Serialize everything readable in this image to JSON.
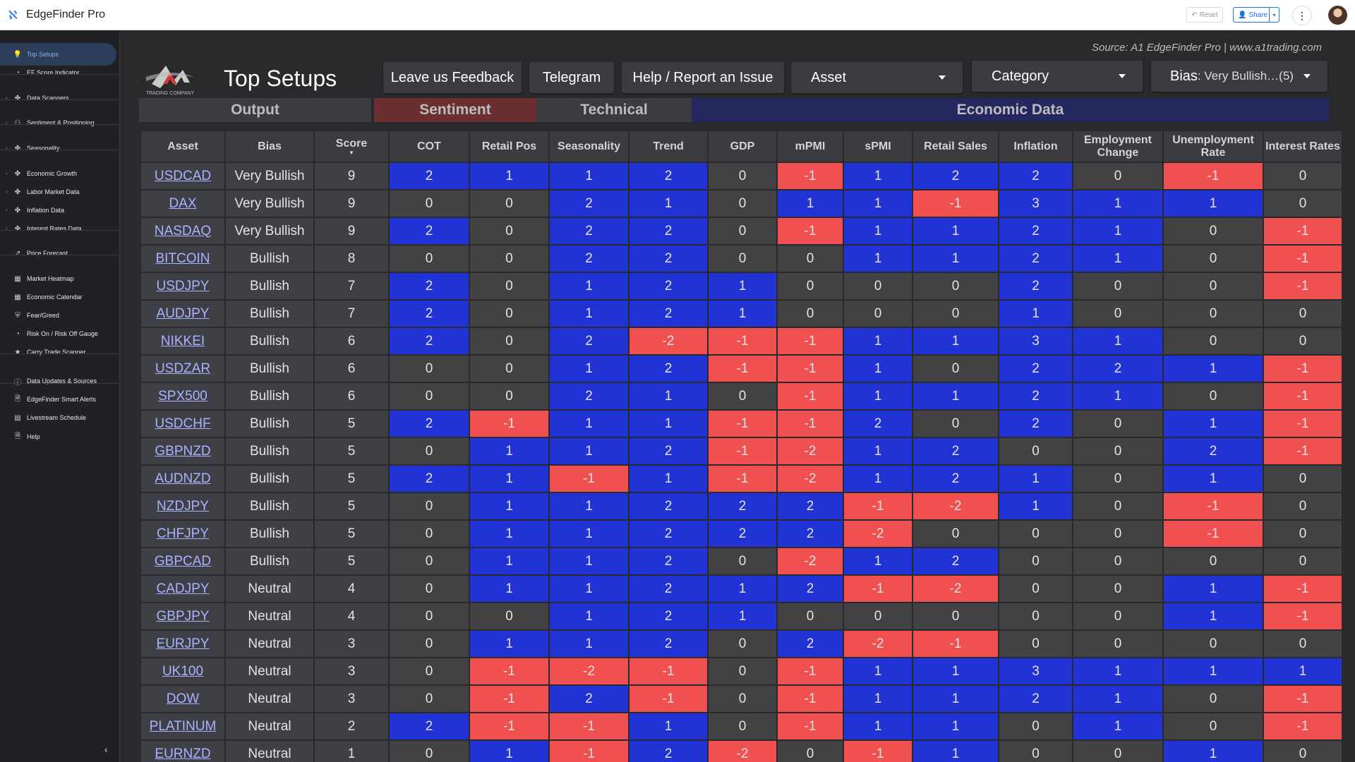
{
  "app": {
    "title": "EdgeFinder Pro",
    "reset_label": "Reset",
    "share_label": "Share"
  },
  "sidebar": {
    "items": [
      {
        "label": "Top Setups",
        "icon": "lightbulb-icon"
      },
      {
        "label": "EF Score Indicator",
        "icon": "gauge-icon"
      },
      {
        "label": "Data Scanners",
        "icon": "scanner-icon"
      },
      {
        "label": "Sentiment & Positioning",
        "icon": "people-icon"
      },
      {
        "label": "Seasonality",
        "icon": "scanner-icon"
      },
      {
        "label": "Economic Growth",
        "icon": "scanner-icon"
      },
      {
        "label": "Labor Market Data",
        "icon": "scanner-icon"
      },
      {
        "label": "Inflation Data",
        "icon": "scanner-icon"
      },
      {
        "label": "Interest Rates Data",
        "icon": "scanner-icon"
      },
      {
        "label": "Price Forecast",
        "icon": "trend-icon"
      },
      {
        "label": "Market Heatmap",
        "icon": "grid-icon"
      },
      {
        "label": "Economic Calendar",
        "icon": "grid-icon"
      },
      {
        "label": "Fear/Greed",
        "icon": "shield-icon"
      },
      {
        "label": "Risk On / Risk Off Gauge",
        "icon": "gauge-icon"
      },
      {
        "label": "Carry Trade Scanner",
        "icon": "star-icon"
      },
      {
        "label": "Data Updates & Sources",
        "icon": "info-icon"
      },
      {
        "label": "EdgeFinder Smart Alerts",
        "icon": "document-icon"
      },
      {
        "label": "Livestream Schedule",
        "icon": "calendar-icon"
      },
      {
        "label": "Help",
        "icon": "document-icon"
      }
    ]
  },
  "main": {
    "source": "Source: A1 EdgeFinder Pro | www.a1trading.com",
    "logo_text": "TRADING COMPANY",
    "title": "Top Setups",
    "buttons": {
      "feedback": "Leave us Feedback",
      "telegram": "Telegram",
      "help": "Help / Report an Issue"
    },
    "filters": {
      "asset": "Asset",
      "category": "Category",
      "bias_label": "Bias",
      "bias_value": ": Very Bullish…(5)"
    },
    "sections": {
      "output": "Output",
      "sentiment": "Sentiment",
      "technical": "Technical",
      "economic": "Economic Data"
    },
    "columns": [
      "Asset",
      "Bias",
      "Score",
      "COT",
      "Retail Pos",
      "Seasonality",
      "Trend",
      "GDP",
      "mPMI",
      "sPMI",
      "Retail Sales",
      "Inflation",
      "Employment Change",
      "Unemployment Rate",
      "Interest Rates"
    ],
    "rows": [
      [
        "USDCAD",
        "Very Bullish",
        9,
        2,
        1,
        1,
        2,
        0,
        -1,
        1,
        2,
        2,
        0,
        -1,
        0
      ],
      [
        "DAX",
        "Very Bullish",
        9,
        0,
        0,
        2,
        1,
        0,
        1,
        1,
        -1,
        3,
        1,
        1,
        0
      ],
      [
        "NASDAQ",
        "Very Bullish",
        9,
        2,
        0,
        2,
        2,
        0,
        -1,
        1,
        1,
        2,
        1,
        0,
        -1
      ],
      [
        "BITCOIN",
        "Bullish",
        8,
        0,
        0,
        2,
        2,
        0,
        0,
        1,
        1,
        2,
        1,
        0,
        -1
      ],
      [
        "USDJPY",
        "Bullish",
        7,
        2,
        0,
        1,
        2,
        1,
        0,
        0,
        0,
        2,
        0,
        0,
        -1
      ],
      [
        "AUDJPY",
        "Bullish",
        7,
        2,
        0,
        1,
        2,
        1,
        0,
        0,
        0,
        1,
        0,
        0,
        0
      ],
      [
        "NIKKEI",
        "Bullish",
        6,
        2,
        0,
        2,
        -2,
        -1,
        -1,
        1,
        1,
        3,
        1,
        0,
        0
      ],
      [
        "USDZAR",
        "Bullish",
        6,
        0,
        0,
        1,
        2,
        -1,
        -1,
        1,
        0,
        2,
        2,
        1,
        -1
      ],
      [
        "SPX500",
        "Bullish",
        6,
        0,
        0,
        2,
        1,
        0,
        -1,
        1,
        1,
        2,
        1,
        0,
        -1
      ],
      [
        "USDCHF",
        "Bullish",
        5,
        2,
        -1,
        1,
        1,
        -1,
        -1,
        2,
        0,
        2,
        0,
        1,
        -1
      ],
      [
        "GBPNZD",
        "Bullish",
        5,
        0,
        1,
        1,
        2,
        -1,
        -2,
        1,
        2,
        0,
        0,
        2,
        -1
      ],
      [
        "AUDNZD",
        "Bullish",
        5,
        2,
        1,
        -1,
        1,
        -1,
        -2,
        1,
        2,
        1,
        0,
        1,
        0
      ],
      [
        "NZDJPY",
        "Bullish",
        5,
        0,
        1,
        1,
        2,
        2,
        2,
        -1,
        -2,
        1,
        0,
        -1,
        0
      ],
      [
        "CHFJPY",
        "Bullish",
        5,
        0,
        1,
        1,
        2,
        2,
        2,
        -2,
        0,
        0,
        0,
        -1,
        0
      ],
      [
        "GBPCAD",
        "Bullish",
        5,
        0,
        1,
        1,
        2,
        0,
        -2,
        1,
        2,
        0,
        0,
        0,
        0
      ],
      [
        "CADJPY",
        "Neutral",
        4,
        0,
        1,
        1,
        2,
        1,
        2,
        -1,
        -2,
        0,
        0,
        1,
        -1
      ],
      [
        "GBPJPY",
        "Neutral",
        4,
        0,
        0,
        1,
        2,
        1,
        0,
        0,
        0,
        0,
        0,
        1,
        -1
      ],
      [
        "EURJPY",
        "Neutral",
        3,
        0,
        1,
        1,
        2,
        0,
        2,
        -2,
        -1,
        0,
        0,
        0,
        0
      ],
      [
        "UK100",
        "Neutral",
        3,
        0,
        -1,
        -2,
        -1,
        0,
        -1,
        1,
        1,
        3,
        1,
        1,
        1
      ],
      [
        "DOW",
        "Neutral",
        3,
        0,
        -1,
        2,
        -1,
        0,
        -1,
        1,
        1,
        2,
        1,
        0,
        -1
      ],
      [
        "PLATINUM",
        "Neutral",
        2,
        2,
        -1,
        -1,
        1,
        0,
        -1,
        1,
        1,
        0,
        1,
        0,
        -1
      ],
      [
        "EURNZD",
        "Neutral",
        1,
        0,
        1,
        -1,
        2,
        -2,
        0,
        -1,
        1,
        0,
        0,
        1,
        0
      ]
    ]
  },
  "colors": {
    "positive": "#2233d6",
    "negative": "#f05050",
    "neutral": "#424245",
    "sentiment_header": "#6b2f31",
    "economic_header": "#25285e"
  }
}
